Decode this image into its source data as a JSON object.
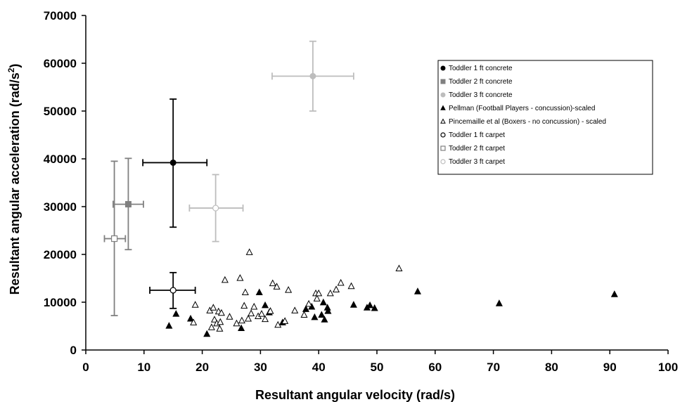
{
  "chart_data": {
    "type": "scatter",
    "title": "",
    "xlabel": "Resultant angular velocity (rad/s)",
    "ylabel_main": "Resultant angular acceleration (rad/s",
    "ylabel_sup": "2",
    "ylabel_end": ")",
    "xlim": [
      0,
      100
    ],
    "ylim": [
      0,
      70000
    ],
    "x_ticks": [
      "0",
      "10",
      "20",
      "30",
      "40",
      "50",
      "60",
      "70",
      "80",
      "90",
      "100"
    ],
    "y_ticks": [
      "0",
      "10000",
      "20000",
      "30000",
      "40000",
      "50000",
      "60000",
      "70000"
    ],
    "grid": false,
    "legend_position": "top-right",
    "series": [
      {
        "name": "Toddler 1 ft concrete",
        "marker": "circle-filled",
        "color": "#000000",
        "points": [
          {
            "x": 15,
            "y": 39200,
            "xerr": [
              9.8,
              20.8
            ],
            "yerr": [
              25700,
              52500
            ]
          }
        ]
      },
      {
        "name": "Toddler 2 ft concrete",
        "marker": "square-filled",
        "color": "#808080",
        "points": [
          {
            "x": 7.3,
            "y": 30500,
            "xerr": [
              4.7,
              9.9
            ],
            "yerr": [
              21000,
              40100
            ]
          }
        ]
      },
      {
        "name": "Toddler 3 ft concrete",
        "marker": "circle-filled",
        "color": "#bdbdbd",
        "points": [
          {
            "x": 39,
            "y": 57300,
            "xerr": [
              32,
              46
            ],
            "yerr": [
              50000,
              64600
            ]
          }
        ]
      },
      {
        "name": "Pellman (Football Players - concussion)-scaled",
        "marker": "triangle-filled",
        "color": "#000000",
        "points": [
          {
            "x": 14.3,
            "y": 5000
          },
          {
            "x": 15.5,
            "y": 7500
          },
          {
            "x": 18,
            "y": 6500
          },
          {
            "x": 20.8,
            "y": 3300
          },
          {
            "x": 26.7,
            "y": 4500
          },
          {
            "x": 29.8,
            "y": 12000
          },
          {
            "x": 30.8,
            "y": 9300
          },
          {
            "x": 31.5,
            "y": 7800
          },
          {
            "x": 33.8,
            "y": 5700
          },
          {
            "x": 37.8,
            "y": 8500
          },
          {
            "x": 38.8,
            "y": 9000
          },
          {
            "x": 39.3,
            "y": 6800
          },
          {
            "x": 40.5,
            "y": 7300
          },
          {
            "x": 40.8,
            "y": 9900
          },
          {
            "x": 41,
            "y": 6300
          },
          {
            "x": 41.5,
            "y": 8800
          },
          {
            "x": 41.6,
            "y": 8100
          },
          {
            "x": 46,
            "y": 9400
          },
          {
            "x": 48.3,
            "y": 8800
          },
          {
            "x": 48.8,
            "y": 9300
          },
          {
            "x": 49.6,
            "y": 8700
          },
          {
            "x": 57,
            "y": 12200
          },
          {
            "x": 71,
            "y": 9700
          },
          {
            "x": 90.8,
            "y": 11600
          }
        ]
      },
      {
        "name": "Pincemaille et al (Boxers - no concussion) - scaled",
        "marker": "triangle-open",
        "color": "#000000",
        "points": [
          {
            "x": 18.8,
            "y": 9400
          },
          {
            "x": 18.5,
            "y": 5700
          },
          {
            "x": 21.3,
            "y": 8200
          },
          {
            "x": 21.6,
            "y": 4700
          },
          {
            "x": 21.9,
            "y": 8800
          },
          {
            "x": 22.1,
            "y": 6300
          },
          {
            "x": 22.5,
            "y": 5500
          },
          {
            "x": 22.8,
            "y": 8000
          },
          {
            "x": 23,
            "y": 4400
          },
          {
            "x": 23.1,
            "y": 5800
          },
          {
            "x": 23.3,
            "y": 7700
          },
          {
            "x": 23.9,
            "y": 14600
          },
          {
            "x": 24.7,
            "y": 6900
          },
          {
            "x": 25.9,
            "y": 5500
          },
          {
            "x": 26.5,
            "y": 15000
          },
          {
            "x": 26.8,
            "y": 6100
          },
          {
            "x": 27.2,
            "y": 9200
          },
          {
            "x": 27.4,
            "y": 12000
          },
          {
            "x": 27.9,
            "y": 6500
          },
          {
            "x": 28.1,
            "y": 20400
          },
          {
            "x": 28.4,
            "y": 7600
          },
          {
            "x": 28.9,
            "y": 9000
          },
          {
            "x": 29.6,
            "y": 7000
          },
          {
            "x": 30.2,
            "y": 7500
          },
          {
            "x": 30.8,
            "y": 6400
          },
          {
            "x": 31.7,
            "y": 8100
          },
          {
            "x": 32.1,
            "y": 13900
          },
          {
            "x": 32.8,
            "y": 13200
          },
          {
            "x": 33,
            "y": 5200
          },
          {
            "x": 34.2,
            "y": 6000
          },
          {
            "x": 34.8,
            "y": 12500
          },
          {
            "x": 35.9,
            "y": 8200
          },
          {
            "x": 37.5,
            "y": 7300
          },
          {
            "x": 38.3,
            "y": 9600
          },
          {
            "x": 39.5,
            "y": 11800
          },
          {
            "x": 39.7,
            "y": 10700
          },
          {
            "x": 40,
            "y": 11800
          },
          {
            "x": 42,
            "y": 11800
          },
          {
            "x": 43,
            "y": 12600
          },
          {
            "x": 43.8,
            "y": 14000
          },
          {
            "x": 45.6,
            "y": 13300
          },
          {
            "x": 53.8,
            "y": 17000
          }
        ]
      },
      {
        "name": "Toddler 1 ft carpet",
        "marker": "circle-open",
        "color": "#000000",
        "points": [
          {
            "x": 15,
            "y": 12500,
            "xerr": [
              11,
              18.8
            ],
            "yerr": [
              8700,
              16200
            ]
          }
        ]
      },
      {
        "name": "Toddler 2 ft carpet",
        "marker": "square-open",
        "color": "#808080",
        "points": [
          {
            "x": 4.9,
            "y": 23300,
            "xerr": [
              3.2,
              6.8
            ],
            "yerr": [
              7200,
              39500
            ]
          }
        ]
      },
      {
        "name": "Toddler 3 ft carpet",
        "marker": "circle-open",
        "color": "#bdbdbd",
        "points": [
          {
            "x": 22.3,
            "y": 29700,
            "xerr": [
              17.8,
              27
            ],
            "yerr": [
              22700,
              36700
            ]
          }
        ]
      }
    ]
  }
}
